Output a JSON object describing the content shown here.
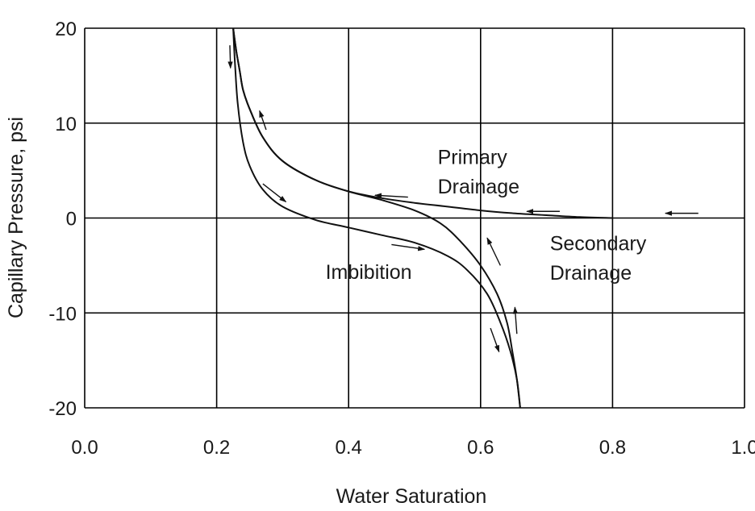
{
  "chart_data": {
    "type": "line",
    "title": "",
    "xlabel": "Water Saturation",
    "ylabel": "Capillary Pressure, psi",
    "xlim": [
      0.0,
      1.0
    ],
    "ylim": [
      -20,
      20
    ],
    "x_ticks": [
      "0.0",
      "0.2",
      "0.4",
      "0.6",
      "0.8",
      "1.0"
    ],
    "y_ticks": [
      "20",
      "10",
      "0",
      "-10",
      "-20"
    ],
    "grid": true,
    "legend": "none",
    "series": [
      {
        "name": "Primary Drainage",
        "x": [
          0.8,
          0.75,
          0.7,
          0.65,
          0.6,
          0.55,
          0.5,
          0.45,
          0.4,
          0.35,
          0.3,
          0.27,
          0.25,
          0.24,
          0.235,
          0.23,
          0.225
        ],
        "y": [
          0.0,
          0.1,
          0.3,
          0.5,
          0.8,
          1.2,
          1.6,
          2.1,
          2.8,
          4.0,
          6.0,
          8.5,
          11.5,
          13.5,
          15.5,
          17.5,
          20.0
        ]
      },
      {
        "name": "Imbibition",
        "x": [
          0.225,
          0.228,
          0.232,
          0.24,
          0.25,
          0.27,
          0.3,
          0.35,
          0.4,
          0.45,
          0.5,
          0.55,
          0.58,
          0.61,
          0.63,
          0.645,
          0.655,
          0.66
        ],
        "y": [
          20.0,
          16.0,
          12.0,
          8.0,
          5.5,
          3.0,
          1.2,
          -0.2,
          -1.0,
          -1.8,
          -2.6,
          -4.0,
          -5.5,
          -8.0,
          -11.0,
          -14.0,
          -17.0,
          -20.0
        ]
      },
      {
        "name": "Secondary Drainage",
        "x": [
          0.66,
          0.655,
          0.648,
          0.64,
          0.625,
          0.6,
          0.57,
          0.54,
          0.5,
          0.45,
          0.4,
          0.35,
          0.3,
          0.27,
          0.25,
          0.24,
          0.235,
          0.23,
          0.225
        ],
        "y": [
          -20.0,
          -17.0,
          -14.0,
          -11.0,
          -8.0,
          -5.0,
          -2.5,
          -0.6,
          0.8,
          1.9,
          2.8,
          4.0,
          6.0,
          8.5,
          11.5,
          13.5,
          15.5,
          17.5,
          20.0
        ]
      }
    ],
    "annotations": [
      {
        "text": "Primary",
        "x": 0.535,
        "y": 5.7
      },
      {
        "text": "Drainage",
        "x": 0.535,
        "y": 2.6
      },
      {
        "text": "Imbibition",
        "x": 0.365,
        "y": -6.4
      },
      {
        "text": "Secondary",
        "x": 0.705,
        "y": -3.4
      },
      {
        "text": "Drainage",
        "x": 0.705,
        "y": -6.5
      }
    ],
    "direction_arrows": [
      {
        "x1": 0.93,
        "y1": 0.5,
        "x2": 0.88,
        "y2": 0.5
      },
      {
        "x1": 0.72,
        "y1": 0.7,
        "x2": 0.67,
        "y2": 0.7
      },
      {
        "x1": 0.49,
        "y1": 2.2,
        "x2": 0.44,
        "y2": 2.4
      },
      {
        "x1": 0.275,
        "y1": 9.3,
        "x2": 0.265,
        "y2": 11.3
      },
      {
        "x1": 0.22,
        "y1": 18.2,
        "x2": 0.221,
        "y2": 15.8
      },
      {
        "x1": 0.27,
        "y1": 3.6,
        "x2": 0.305,
        "y2": 1.7
      },
      {
        "x1": 0.465,
        "y1": -2.8,
        "x2": 0.515,
        "y2": -3.3
      },
      {
        "x1": 0.615,
        "y1": -11.6,
        "x2": 0.628,
        "y2": -14.1
      },
      {
        "x1": 0.655,
        "y1": -12.2,
        "x2": 0.652,
        "y2": -9.4
      },
      {
        "x1": 0.63,
        "y1": -5.0,
        "x2": 0.61,
        "y2": -2.1
      }
    ]
  }
}
